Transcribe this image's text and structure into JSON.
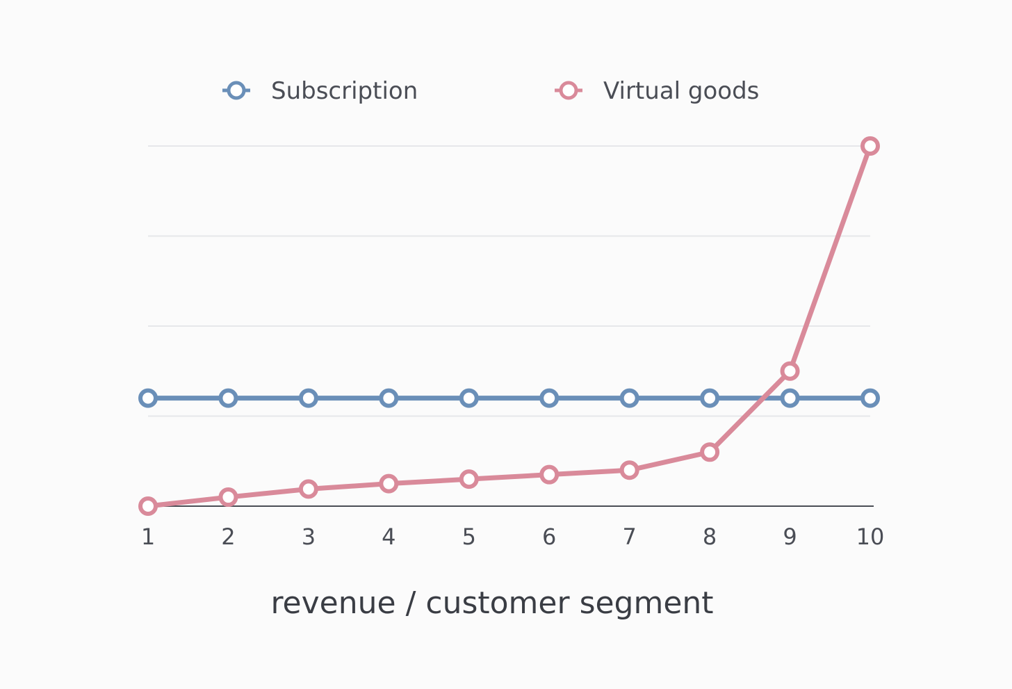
{
  "chart_data": {
    "type": "line",
    "title": "",
    "xlabel": "revenue / customer segment",
    "ylabel": "",
    "categories": [
      "1",
      "2",
      "3",
      "4",
      "5",
      "6",
      "7",
      "8",
      "9",
      "10"
    ],
    "ylim": [
      0,
      4
    ],
    "yticks": [
      0,
      1,
      2,
      3,
      4
    ],
    "show_ytick_labels": false,
    "grid": true,
    "legend_position": "top",
    "series": [
      {
        "name": "Subscription",
        "color": "#6a8fb8",
        "values": [
          1.2,
          1.2,
          1.2,
          1.2,
          1.2,
          1.2,
          1.2,
          1.2,
          1.2,
          1.2
        ]
      },
      {
        "name": "Virtual goods",
        "color": "#d98a9a",
        "values": [
          0,
          0.1,
          0.19,
          0.25,
          0.3,
          0.35,
          0.4,
          0.6,
          1.5,
          4.0
        ]
      }
    ]
  }
}
